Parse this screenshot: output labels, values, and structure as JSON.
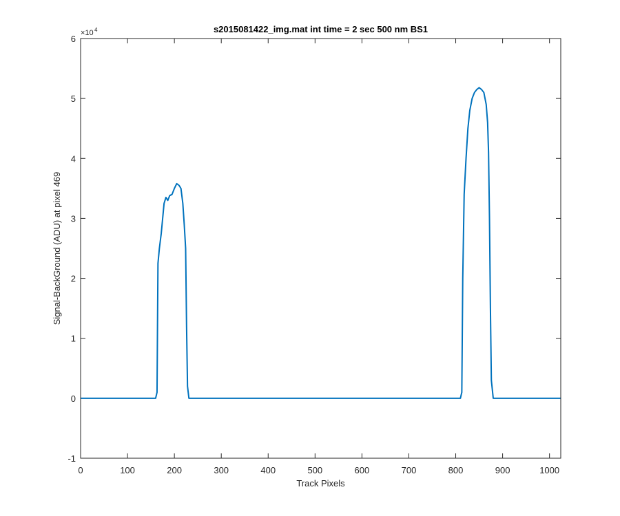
{
  "chart_data": {
    "type": "line",
    "title": "s2015081422_img.mat int time = 2 sec  500 nm BS1",
    "xlabel": "Track Pixels",
    "ylabel": "Signal-BackGround (ADU) at pixel 469",
    "xlim": [
      0,
      1024
    ],
    "ylim": [
      -10000,
      60000
    ],
    "x_ticks": [
      0,
      100,
      200,
      300,
      400,
      500,
      600,
      700,
      800,
      900,
      1000
    ],
    "y_ticks": [
      -1,
      0,
      1,
      2,
      3,
      4,
      5,
      6
    ],
    "y_multiplier": {
      "base": "×10",
      "exponent": "4"
    },
    "grid": false,
    "series": [
      {
        "color": "#0072BD",
        "points": [
          [
            0,
            0
          ],
          [
            50,
            0
          ],
          [
            100,
            0
          ],
          [
            150,
            0
          ],
          [
            160,
            0
          ],
          [
            163,
            1000
          ],
          [
            165,
            22500
          ],
          [
            168,
            25000
          ],
          [
            172,
            27500
          ],
          [
            175,
            30000
          ],
          [
            178,
            32500
          ],
          [
            182,
            33500
          ],
          [
            186,
            33000
          ],
          [
            190,
            33800
          ],
          [
            195,
            34000
          ],
          [
            200,
            35000
          ],
          [
            205,
            35800
          ],
          [
            210,
            35500
          ],
          [
            214,
            35000
          ],
          [
            218,
            32500
          ],
          [
            221,
            29000
          ],
          [
            224,
            25000
          ],
          [
            226,
            12000
          ],
          [
            228,
            2000
          ],
          [
            231,
            0
          ],
          [
            300,
            0
          ],
          [
            400,
            0
          ],
          [
            500,
            0
          ],
          [
            600,
            0
          ],
          [
            700,
            0
          ],
          [
            800,
            0
          ],
          [
            810,
            0
          ],
          [
            813,
            1000
          ],
          [
            815,
            20000
          ],
          [
            818,
            34000
          ],
          [
            822,
            40000
          ],
          [
            826,
            45000
          ],
          [
            830,
            48000
          ],
          [
            835,
            50000
          ],
          [
            840,
            51000
          ],
          [
            845,
            51500
          ],
          [
            850,
            51800
          ],
          [
            855,
            51500
          ],
          [
            860,
            51000
          ],
          [
            865,
            49000
          ],
          [
            868,
            46000
          ],
          [
            870,
            41000
          ],
          [
            872,
            30000
          ],
          [
            874,
            15000
          ],
          [
            876,
            3000
          ],
          [
            880,
            0
          ],
          [
            950,
            0
          ],
          [
            1024,
            0
          ]
        ]
      }
    ]
  }
}
